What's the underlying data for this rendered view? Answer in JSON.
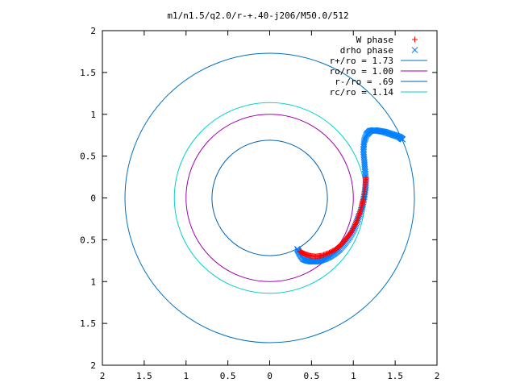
{
  "chart_data": {
    "type": "scatter",
    "title": "m1/n1.5/q2.0/r-+.40-j206/M50.0/512",
    "xlabel": "",
    "ylabel": "",
    "xlim": [
      -2,
      2
    ],
    "ylim": [
      -2,
      2
    ],
    "x_ticks": [
      {
        "value": -2,
        "label": "2"
      },
      {
        "value": -1.5,
        "label": "1.5"
      },
      {
        "value": -1,
        "label": "1"
      },
      {
        "value": -0.5,
        "label": "0.5"
      },
      {
        "value": 0,
        "label": "0"
      },
      {
        "value": 0.5,
        "label": "0.5"
      },
      {
        "value": 1,
        "label": "1"
      },
      {
        "value": 1.5,
        "label": "1.5"
      },
      {
        "value": 2,
        "label": "2"
      }
    ],
    "y_ticks": [
      {
        "value": 2,
        "label": "2"
      },
      {
        "value": 1.5,
        "label": "1.5"
      },
      {
        "value": 1,
        "label": "1"
      },
      {
        "value": 0.5,
        "label": "0.5"
      },
      {
        "value": 0,
        "label": "0"
      },
      {
        "value": -0.5,
        "label": "0.5"
      },
      {
        "value": -1,
        "label": "1"
      },
      {
        "value": -1.5,
        "label": "1.5"
      },
      {
        "value": -2,
        "label": "2"
      }
    ],
    "grid": false,
    "legend_position": "top-right",
    "series": [
      {
        "name": "W phase",
        "kind": "points",
        "marker": "plus",
        "color": "#ff0000",
        "x": [
          0.36,
          0.42,
          0.48,
          0.55,
          0.62,
          0.7,
          0.78,
          0.85,
          0.92,
          0.98,
          1.03,
          1.07,
          1.1,
          1.12,
          1.14,
          1.15
        ],
        "y": [
          -0.64,
          -0.67,
          -0.69,
          -0.7,
          -0.69,
          -0.66,
          -0.62,
          -0.56,
          -0.48,
          -0.4,
          -0.3,
          -0.2,
          -0.1,
          0.0,
          0.12,
          0.24
        ]
      },
      {
        "name": "drho phase",
        "kind": "points",
        "marker": "cross",
        "color": "#0080ff",
        "x": [
          0.33,
          0.36,
          0.4,
          0.45,
          0.5,
          0.55,
          0.6,
          0.66,
          0.72,
          0.78,
          0.84,
          0.9,
          0.96,
          1.01,
          1.05,
          1.09,
          1.12,
          1.14,
          1.15,
          1.14,
          1.13,
          1.12,
          1.13,
          1.16,
          1.2,
          1.25,
          1.31,
          1.37,
          1.43,
          1.49,
          1.55,
          1.59
        ],
        "y": [
          -0.61,
          -0.67,
          -0.73,
          -0.75,
          -0.76,
          -0.76,
          -0.75,
          -0.73,
          -0.7,
          -0.66,
          -0.61,
          -0.54,
          -0.46,
          -0.37,
          -0.27,
          -0.16,
          -0.05,
          0.07,
          0.2,
          0.33,
          0.45,
          0.57,
          0.68,
          0.76,
          0.8,
          0.81,
          0.8,
          0.79,
          0.77,
          0.75,
          0.73,
          0.7
        ]
      },
      {
        "name": "r+/ro = 1.73",
        "kind": "circle",
        "radius": 1.73,
        "color": "#0072bd"
      },
      {
        "name": "ro/ro = 1.00",
        "kind": "circle",
        "radius": 1.0,
        "color": "#a000b0"
      },
      {
        "name": "r-/ro = .69",
        "kind": "circle",
        "radius": 0.69,
        "color": "#0060ad"
      },
      {
        "name": "rc/ro = 1.14",
        "kind": "circle",
        "radius": 1.14,
        "color": "#00d0d0"
      }
    ]
  }
}
